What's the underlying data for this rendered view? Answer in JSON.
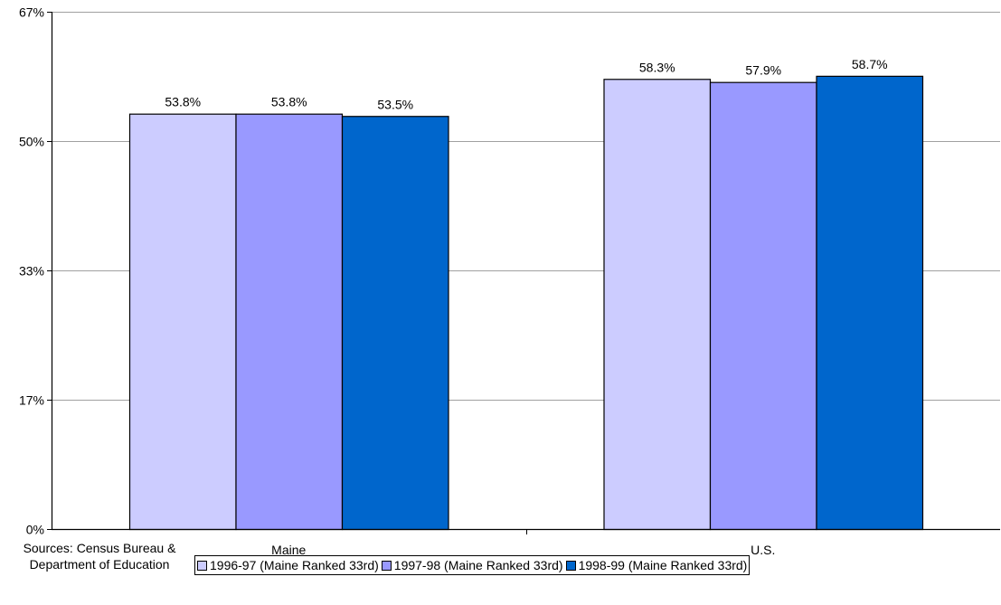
{
  "chart_data": {
    "type": "bar",
    "categories": [
      "Maine",
      "U.S."
    ],
    "series": [
      {
        "name": "1996-97 (Maine Ranked 33rd)",
        "values": [
          53.8,
          58.3
        ],
        "color": "#ccccff"
      },
      {
        "name": "1997-98 (Maine Ranked 33rd)",
        "values": [
          53.8,
          57.9
        ],
        "color": "#9999ff"
      },
      {
        "name": "1998-99 (Maine Ranked 33rd)",
        "values": [
          53.5,
          58.7
        ],
        "color": "#0066cc"
      }
    ],
    "data_labels": [
      [
        "53.8%",
        "58.3%"
      ],
      [
        "53.8%",
        "57.9%"
      ],
      [
        "53.5%",
        "58.7%"
      ]
    ],
    "yticks": [
      {
        "value": 0,
        "label": "0%"
      },
      {
        "value": 16.75,
        "label": "17%"
      },
      {
        "value": 33.5,
        "label": "33%"
      },
      {
        "value": 50.25,
        "label": "50%"
      },
      {
        "value": 67,
        "label": "67%"
      }
    ],
    "ylim": [
      0,
      67
    ],
    "title": "",
    "xlabel": "",
    "ylabel": "",
    "grid": true,
    "legend_position": "bottom",
    "source_note": "Sources:  Census Bureau & Department of Education",
    "gridline_color": "#a0a0a0",
    "bar_border_color": "#000000"
  }
}
